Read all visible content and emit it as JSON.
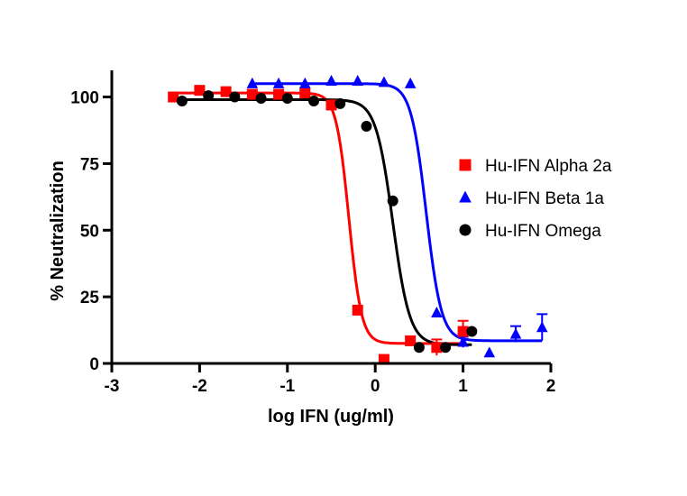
{
  "chart_data": {
    "type": "scatter",
    "title": "",
    "xlabel": "log IFN (ug/ml)",
    "ylabel": "% Neutralization",
    "xlim": [
      -3,
      2
    ],
    "ylim": [
      0,
      110
    ],
    "xticks": [
      -3,
      -2,
      -1,
      0,
      1,
      2
    ],
    "yticks": [
      0,
      25,
      50,
      75,
      100
    ],
    "xtick_labels": [
      "-3",
      "-2",
      "-1",
      "0",
      "1",
      "2"
    ],
    "ytick_labels": [
      "0",
      "25",
      "50",
      "75",
      "100"
    ],
    "grid": false,
    "legend_position": "right",
    "series": [
      {
        "name": "Hu-IFN Alpha 2a",
        "color": "#ff0000",
        "marker": "square",
        "x": [
          -2.3,
          -2.0,
          -1.7,
          -1.4,
          -1.1,
          -0.8,
          -0.5,
          -0.2,
          0.1,
          0.4,
          0.7,
          1.0
        ],
        "y": [
          100,
          102.5,
          102,
          101,
          101,
          101.5,
          97,
          20,
          1.5,
          8.5,
          6,
          12
        ],
        "err": [
          0,
          0,
          0,
          0,
          0,
          0,
          0,
          0,
          0,
          0,
          3,
          4
        ],
        "fit": {
          "top": 101.5,
          "bottom": 7.5,
          "logEC50": -0.3,
          "hill": 6
        }
      },
      {
        "name": "Hu-IFN Beta 1a",
        "color": "#0000ff",
        "marker": "triangle",
        "x": [
          -1.4,
          -1.1,
          -0.8,
          -0.5,
          -0.2,
          0.1,
          0.4,
          0.7,
          1.0,
          1.3,
          1.6,
          1.9
        ],
        "y": [
          105,
          105,
          105,
          106,
          106,
          105.5,
          105,
          19,
          8,
          4,
          11,
          13.5
        ],
        "err": [
          0,
          0,
          0,
          0,
          0,
          0,
          0,
          0,
          2,
          0,
          3,
          5
        ],
        "fit": {
          "top": 105,
          "bottom": 8.5,
          "logEC50": 0.58,
          "hill": 5
        }
      },
      {
        "name": "Hu-IFN Omega",
        "color": "#000000",
        "marker": "circle",
        "x": [
          -2.2,
          -1.9,
          -1.6,
          -1.3,
          -1.0,
          -0.7,
          -0.4,
          -0.1,
          0.2,
          0.5,
          0.8,
          1.1
        ],
        "y": [
          98.5,
          100.5,
          100,
          99.5,
          99.5,
          98.5,
          97.5,
          89,
          61,
          6,
          6,
          12
        ],
        "err": [
          0,
          0,
          0,
          0,
          0,
          0,
          0,
          0,
          0,
          0,
          0,
          0
        ],
        "fit": {
          "top": 99,
          "bottom": 7,
          "logEC50": 0.2,
          "hill": 4.5
        }
      }
    ]
  }
}
